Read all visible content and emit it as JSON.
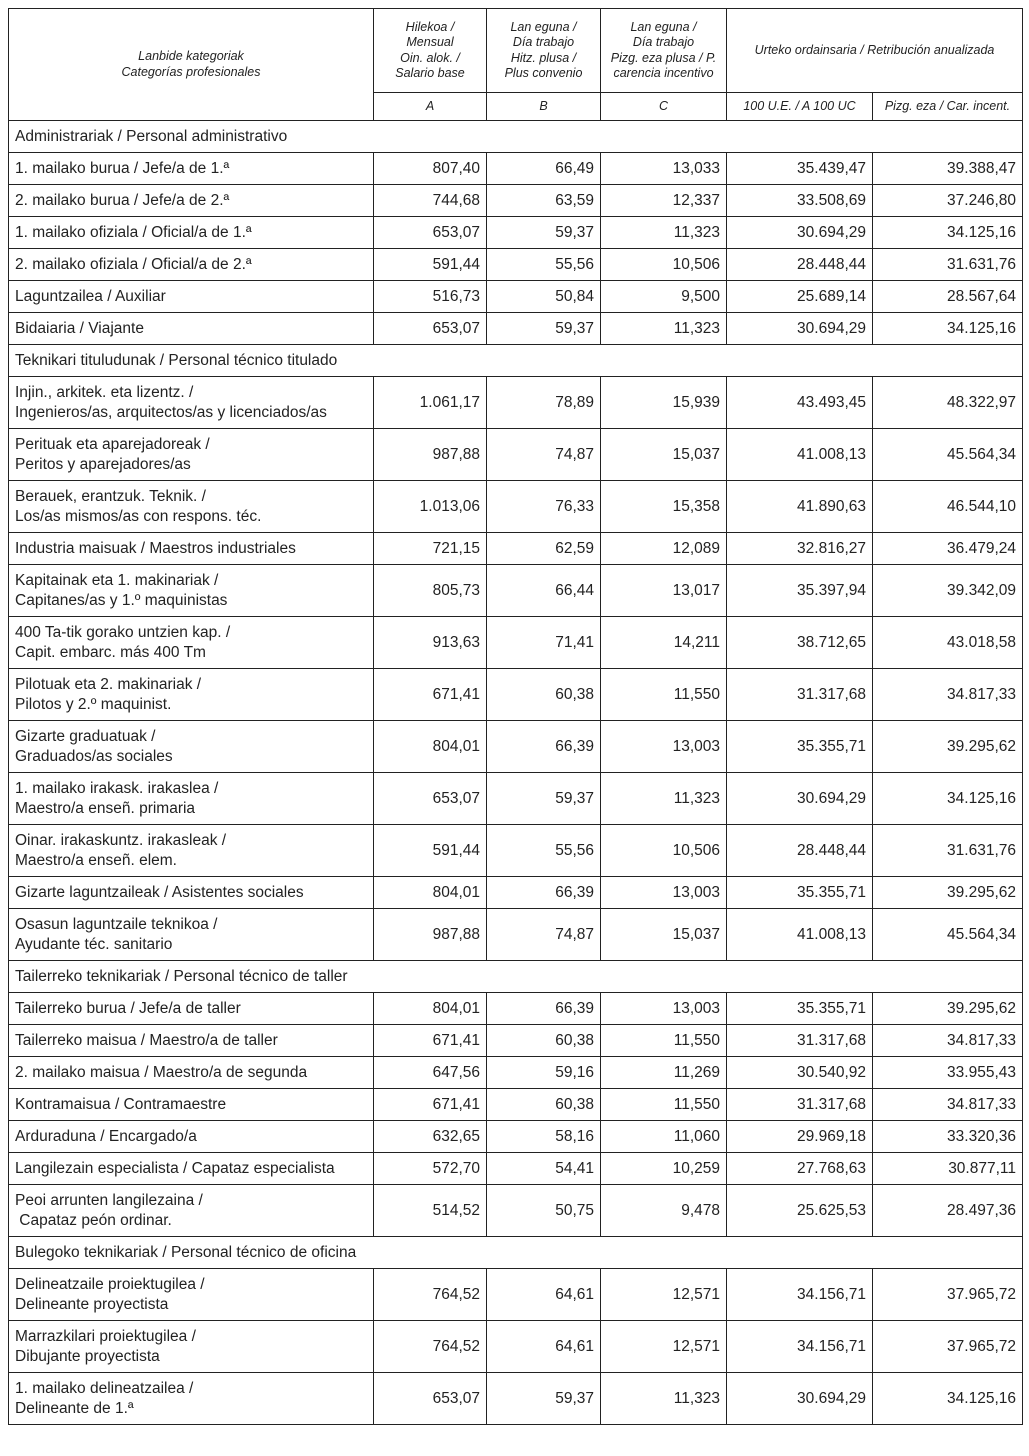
{
  "header": {
    "category": [
      "Lanbide kategoriak",
      "Categorías profesionales"
    ],
    "col_a": [
      "Hilekoa /",
      "Mensual",
      "Oin. alok. /",
      "Salario base"
    ],
    "col_b": [
      "Lan eguna /",
      "Día trabajo",
      "Hitz. plusa /",
      "Plus convenio"
    ],
    "col_c": [
      "Lan eguna /",
      "Día trabajo",
      "Pizg. eza plusa / P.",
      "carencia incentivo"
    ],
    "annual": "Urteko ordainsaria / Retribución anualizada",
    "sub_a": "A",
    "sub_b": "B",
    "sub_c": "C",
    "sub_d": "100 U.E. / A 100 UC",
    "sub_e": "Pizg. eza / Car. incent."
  },
  "rows": [
    {
      "section": "Administrariak / Personal administrativo"
    },
    {
      "label": [
        "1. mailako burua / Jefe/a de 1.ª"
      ],
      "values": [
        "807,40",
        "66,49",
        "13,033",
        "35.439,47",
        "39.388,47"
      ]
    },
    {
      "label": [
        "2. mailako burua / Jefe/a de 2.ª"
      ],
      "values": [
        "744,68",
        "63,59",
        "12,337",
        "33.508,69",
        "37.246,80"
      ]
    },
    {
      "label": [
        "1. mailako ofiziala / Oficial/a de 1.ª"
      ],
      "values": [
        "653,07",
        "59,37",
        "11,323",
        "30.694,29",
        "34.125,16"
      ]
    },
    {
      "label": [
        "2. mailako ofiziala / Oficial/a de 2.ª"
      ],
      "values": [
        "591,44",
        "55,56",
        "10,506",
        "28.448,44",
        "31.631,76"
      ]
    },
    {
      "label": [
        "Laguntzailea / Auxiliar"
      ],
      "values": [
        "516,73",
        "50,84",
        "9,500",
        "25.689,14",
        "28.567,64"
      ]
    },
    {
      "label": [
        "Bidaiaria / Viajante"
      ],
      "values": [
        "653,07",
        "59,37",
        "11,323",
        "30.694,29",
        "34.125,16"
      ]
    },
    {
      "section": "Teknikari tituludunak / Personal técnico titulado"
    },
    {
      "label": [
        "Injin., arkitek. eta lizentz. /",
        "Ingenieros/as, arquitectos/as y licenciados/as"
      ],
      "values": [
        "1.061,17",
        "78,89",
        "15,939",
        "43.493,45",
        "48.322,97"
      ]
    },
    {
      "label": [
        "Perituak eta aparejadoreak /",
        "Peritos y aparejadores/as"
      ],
      "values": [
        "987,88",
        "74,87",
        "15,037",
        "41.008,13",
        "45.564,34"
      ]
    },
    {
      "label": [
        "Berauek, erantzuk. Teknik. /",
        "Los/as mismos/as con respons. téc."
      ],
      "values": [
        "1.013,06",
        "76,33",
        "15,358",
        "41.890,63",
        "46.544,10"
      ]
    },
    {
      "label": [
        "Industria maisuak / Maestros industriales"
      ],
      "values": [
        "721,15",
        "62,59",
        "12,089",
        "32.816,27",
        "36.479,24"
      ]
    },
    {
      "label": [
        "Kapitainak eta 1. makinariak /",
        "Capitanes/as y 1.º maquinistas"
      ],
      "values": [
        "805,73",
        "66,44",
        "13,017",
        "35.397,94",
        "39.342,09"
      ]
    },
    {
      "label": [
        "400 Ta-tik gorako untzien kap. /",
        "Capit. embarc. más 400 Tm"
      ],
      "values": [
        "913,63",
        "71,41",
        "14,211",
        "38.712,65",
        "43.018,58"
      ]
    },
    {
      "label": [
        "Pilotuak eta 2. makinariak /",
        "Pilotos y 2.º maquinist."
      ],
      "values": [
        "671,41",
        "60,38",
        "11,550",
        "31.317,68",
        "34.817,33"
      ]
    },
    {
      "label": [
        "Gizarte graduatuak /",
        "Graduados/as sociales"
      ],
      "values": [
        "804,01",
        "66,39",
        "13,003",
        "35.355,71",
        "39.295,62"
      ]
    },
    {
      "label": [
        "1. mailako irakask. irakaslea /",
        "Maestro/a enseñ. primaria"
      ],
      "values": [
        "653,07",
        "59,37",
        "11,323",
        "30.694,29",
        "34.125,16"
      ]
    },
    {
      "label": [
        "Oinar. irakaskuntz. irakasleak /",
        "Maestro/a enseñ. elem."
      ],
      "values": [
        "591,44",
        "55,56",
        "10,506",
        "28.448,44",
        "31.631,76"
      ]
    },
    {
      "label": [
        "Gizarte laguntzaileak / Asistentes sociales"
      ],
      "values": [
        "804,01",
        "66,39",
        "13,003",
        "35.355,71",
        "39.295,62"
      ]
    },
    {
      "label": [
        "Osasun laguntzaile teknikoa /",
        "Ayudante téc. sanitario"
      ],
      "values": [
        "987,88",
        "74,87",
        "15,037",
        "41.008,13",
        "45.564,34"
      ]
    },
    {
      "section": "Tailerreko teknikariak / Personal técnico de taller"
    },
    {
      "label": [
        "Tailerreko burua / Jefe/a de taller"
      ],
      "values": [
        "804,01",
        "66,39",
        "13,003",
        "35.355,71",
        "39.295,62"
      ]
    },
    {
      "label": [
        "Tailerreko maisua / Maestro/a de taller"
      ],
      "values": [
        "671,41",
        "60,38",
        "11,550",
        "31.317,68",
        "34.817,33"
      ]
    },
    {
      "label": [
        "2. mailako maisua / Maestro/a de segunda"
      ],
      "values": [
        "647,56",
        "59,16",
        "11,269",
        "30.540,92",
        "33.955,43"
      ]
    },
    {
      "label": [
        "Kontramaisua / Contramaestre"
      ],
      "values": [
        "671,41",
        "60,38",
        "11,550",
        "31.317,68",
        "34.817,33"
      ]
    },
    {
      "label": [
        "Arduraduna / Encargado/a"
      ],
      "values": [
        "632,65",
        "58,16",
        "11,060",
        "29.969,18",
        "33.320,36"
      ]
    },
    {
      "label": [
        "Langilezain especialista / Capataz especialista"
      ],
      "values": [
        "572,70",
        "54,41",
        "10,259",
        "27.768,63",
        "30.877,11"
      ]
    },
    {
      "label": [
        "Peoi arrunten langilezaina /",
        " Capataz peón ordinar."
      ],
      "values": [
        "514,52",
        "50,75",
        "9,478",
        "25.625,53",
        "28.497,36"
      ]
    },
    {
      "section": "Bulegoko teknikariak / Personal técnico de oficina"
    },
    {
      "label": [
        "Delineatzaile proiektugilea /",
        "Delineante proyectista"
      ],
      "values": [
        "764,52",
        "64,61",
        "12,571",
        "34.156,71",
        "37.965,72"
      ]
    },
    {
      "label": [
        "Marrazkilari proiektugilea /",
        "Dibujante proyectista"
      ],
      "values": [
        "764,52",
        "64,61",
        "12,571",
        "34.156,71",
        "37.965,72"
      ]
    },
    {
      "label": [
        "1. mailako delineatzailea /",
        "Delineante de 1.ª"
      ],
      "values": [
        "653,07",
        "59,37",
        "11,323",
        "30.694,29",
        "34.125,16"
      ]
    }
  ]
}
